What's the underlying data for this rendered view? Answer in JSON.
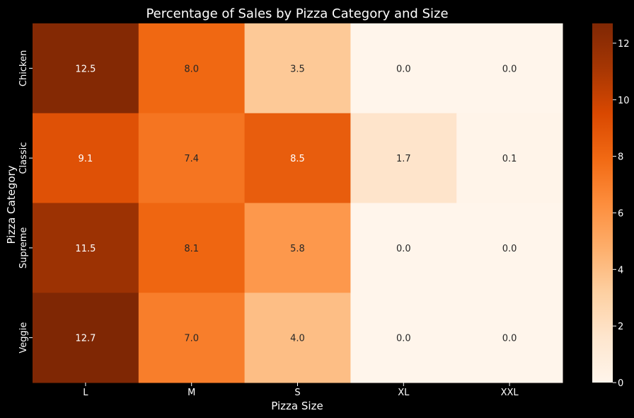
{
  "chart_data": {
    "type": "heatmap",
    "title": "Percentage  of Sales by Pizza Category and Size",
    "xlabel": "Pizza Size",
    "ylabel": "Pizza Category",
    "x_categories": [
      "L",
      "M",
      "S",
      "XL",
      "XXL"
    ],
    "y_categories": [
      "Chicken",
      "Classic",
      "Supreme",
      "Veggie"
    ],
    "values": [
      [
        12.5,
        8.0,
        3.5,
        0.0,
        0.0
      ],
      [
        9.1,
        7.4,
        8.5,
        1.7,
        0.1
      ],
      [
        11.5,
        8.1,
        5.8,
        0.0,
        0.0
      ],
      [
        12.7,
        7.0,
        4.0,
        0.0,
        0.0
      ]
    ],
    "value_format": "0.1f",
    "colormap": "Oranges",
    "vmin": 0.0,
    "vmax": 12.7,
    "colorbar_ticks": [
      0,
      2,
      4,
      6,
      8,
      10,
      12
    ],
    "background": "#000000",
    "text_color": "#ffffff"
  }
}
